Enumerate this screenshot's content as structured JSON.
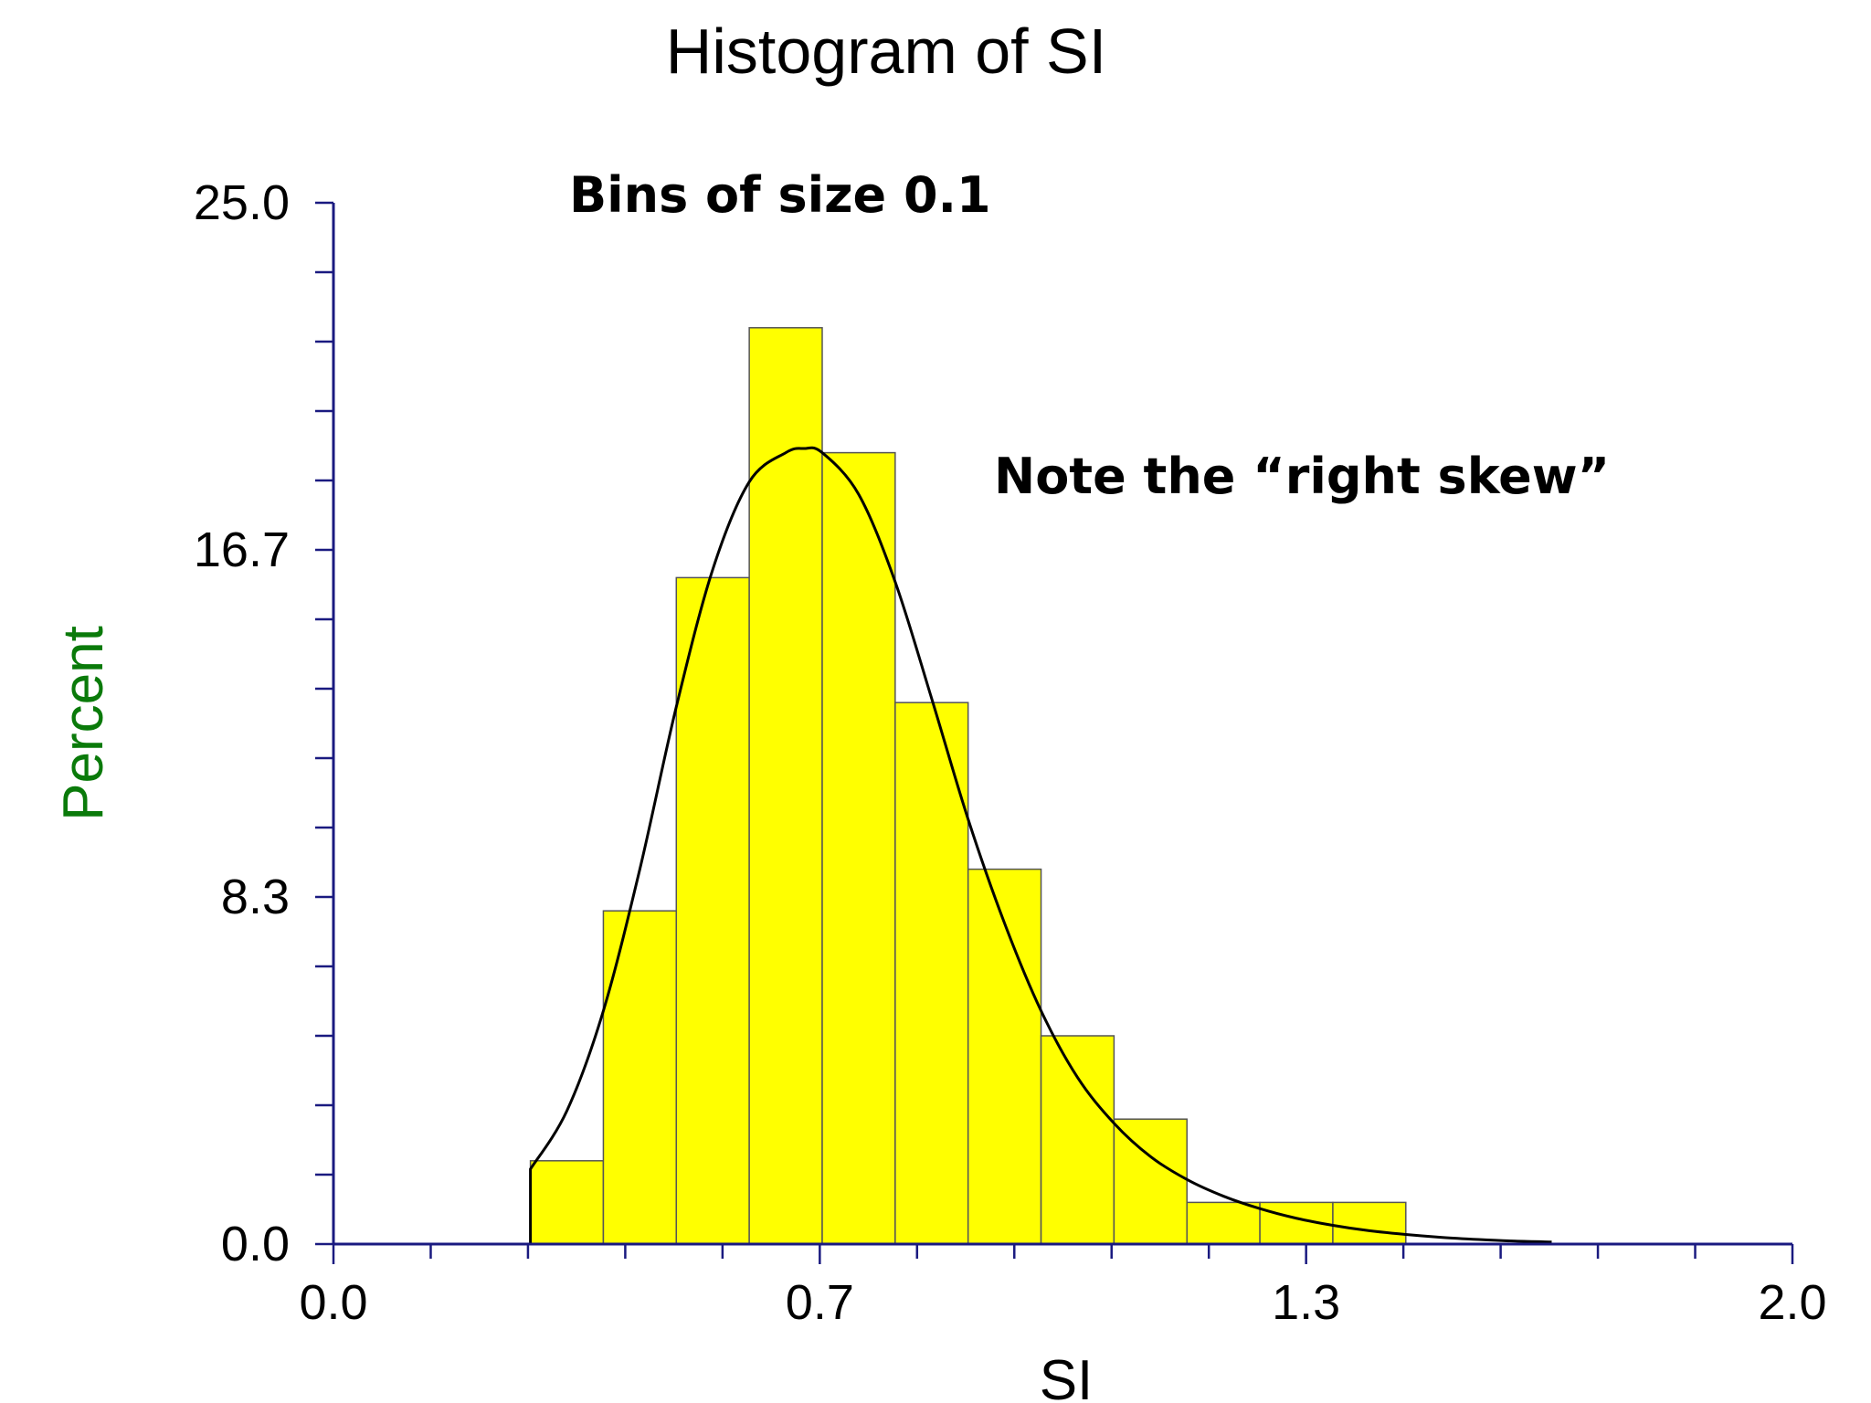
{
  "chart_data": {
    "type": "bar",
    "title": "Histogram of SI",
    "xlabel": "SI",
    "ylabel": "Percent",
    "annotations": [
      "Bins of size 0.1",
      "Note the “right skew”"
    ],
    "xlim": [
      0.0,
      2.0
    ],
    "ylim": [
      0.0,
      25.0
    ],
    "x_tick_labels": [
      "0.0",
      "0.7",
      "1.3",
      "2.0"
    ],
    "y_tick_labels": [
      "0.0",
      "8.3",
      "16.7",
      "25.0"
    ],
    "bin_width": 0.1,
    "bins": [
      {
        "start": 0.27,
        "end": 0.37,
        "value": 2.0
      },
      {
        "start": 0.37,
        "end": 0.47,
        "value": 8.0
      },
      {
        "start": 0.47,
        "end": 0.57,
        "value": 16.0
      },
      {
        "start": 0.57,
        "end": 0.67,
        "value": 22.0
      },
      {
        "start": 0.67,
        "end": 0.77,
        "value": 19.0
      },
      {
        "start": 0.77,
        "end": 0.87,
        "value": 13.0
      },
      {
        "start": 0.87,
        "end": 0.97,
        "value": 9.0
      },
      {
        "start": 0.97,
        "end": 1.07,
        "value": 5.0
      },
      {
        "start": 1.07,
        "end": 1.17,
        "value": 3.0
      },
      {
        "start": 1.17,
        "end": 1.27,
        "value": 1.0
      },
      {
        "start": 1.27,
        "end": 1.37,
        "value": 1.0
      },
      {
        "start": 1.37,
        "end": 1.47,
        "value": 1.0
      }
    ],
    "density_curve": {
      "x": [
        0.27,
        0.32,
        0.37,
        0.42,
        0.47,
        0.52,
        0.57,
        0.62,
        0.645,
        0.67,
        0.72,
        0.77,
        0.82,
        0.87,
        0.92,
        0.97,
        1.02,
        1.07,
        1.12,
        1.17,
        1.22,
        1.27,
        1.32,
        1.37,
        1.42,
        1.47,
        1.52,
        1.57,
        1.62,
        1.67
      ],
      "y": [
        1.8,
        3.2,
        5.6,
        9.0,
        12.9,
        16.2,
        18.3,
        19.0,
        19.1,
        19.0,
        18.0,
        15.9,
        13.1,
        10.2,
        7.7,
        5.6,
        4.0,
        2.9,
        2.1,
        1.55,
        1.15,
        0.85,
        0.62,
        0.45,
        0.32,
        0.23,
        0.16,
        0.11,
        0.07,
        0.05
      ]
    },
    "colors": {
      "bar_fill": "#ffff00",
      "bar_stroke": "#555555",
      "axis": "#1a1a80",
      "curve": "#000000",
      "ylabel": "#0a7a0a"
    }
  }
}
